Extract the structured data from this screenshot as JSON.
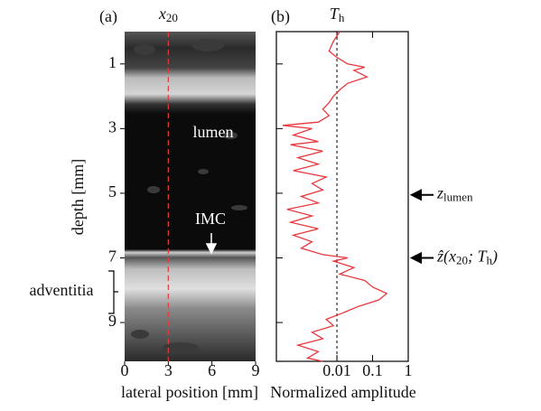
{
  "chart_data": [
    {
      "type": "image",
      "panel_label": "(a)",
      "marker_label": [
        "x",
        "20"
      ],
      "marker_x": 3,
      "xlabel": "lateral position [mm]",
      "ylabel": "depth [mm]",
      "xlim": [
        0,
        9
      ],
      "ylim": [
        0,
        10.2
      ],
      "xticks": [
        0,
        3,
        6,
        9
      ],
      "yticks": [
        1,
        3,
        5,
        7,
        9
      ],
      "marker_color": "#e8383d",
      "annotations": [
        "lumen",
        "IMC",
        "adventitia"
      ]
    },
    {
      "type": "line",
      "panel_label": "(b)",
      "threshold_label": [
        "T",
        "h"
      ],
      "threshold": 0.01,
      "xlabel": "Normalized amplitude",
      "xscale": "log",
      "xlim": [
        0.0002,
        1
      ],
      "ylim": [
        0,
        10.2
      ],
      "xticks": [
        0.01,
        0.1,
        1
      ],
      "series": [
        {
          "color": "#e8383d",
          "y": [
            0.0,
            0.3,
            0.6,
            0.8,
            1.0,
            1.1,
            1.2,
            1.4,
            1.6,
            1.8,
            2.0,
            2.2,
            2.4,
            2.6,
            2.8,
            2.9,
            3.0,
            3.2,
            3.4,
            3.5,
            3.7,
            3.9,
            4.1,
            4.3,
            4.5,
            4.7,
            4.9,
            5.1,
            5.3,
            5.5,
            5.7,
            5.9,
            6.1,
            6.3,
            6.5,
            6.7,
            6.9,
            7.0,
            7.1,
            7.3,
            7.5,
            7.7,
            7.9,
            8.1,
            8.3,
            8.5,
            8.7,
            8.9,
            9.1,
            9.3,
            9.5,
            9.7,
            9.9,
            10.1,
            10.2
          ],
          "values": [
            0.012,
            0.008,
            0.006,
            0.01,
            0.02,
            0.06,
            0.03,
            0.07,
            0.02,
            0.012,
            0.008,
            0.006,
            0.004,
            0.006,
            0.003,
            0.0003,
            0.002,
            0.0006,
            0.003,
            0.0005,
            0.004,
            0.0008,
            0.003,
            0.0006,
            0.005,
            0.002,
            0.004,
            0.001,
            0.003,
            0.0004,
            0.002,
            0.0005,
            0.003,
            0.0006,
            0.002,
            0.001,
            0.004,
            0.02,
            0.008,
            0.03,
            0.012,
            0.06,
            0.1,
            0.25,
            0.15,
            0.04,
            0.015,
            0.005,
            0.008,
            0.002,
            0.004,
            0.0008,
            0.003,
            0.0015,
            0.004
          ]
        }
      ],
      "annotations": [
        {
          "label": [
            "z",
            "lumen"
          ],
          "y": 5.05
        },
        {
          "label": [
            "ẑ(x",
            "20",
            "; T",
            "h",
            ")"
          ],
          "y": 7.0
        }
      ]
    }
  ]
}
